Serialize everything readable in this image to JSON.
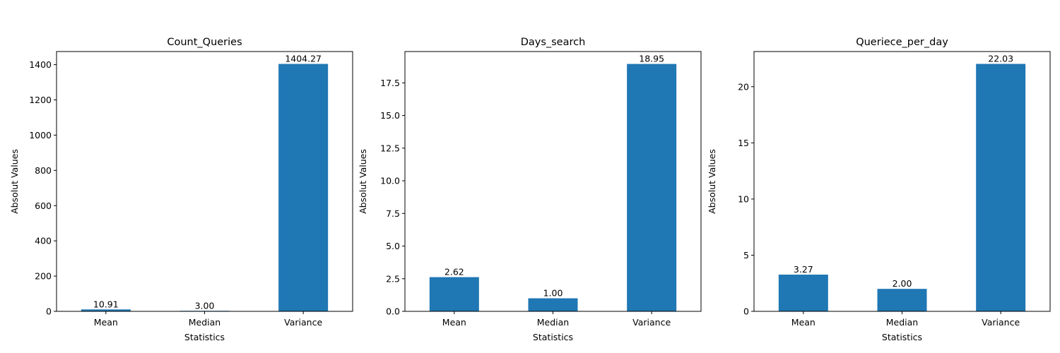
{
  "chart_data": [
    {
      "type": "bar",
      "title": "Count_Queries",
      "xlabel": "Statistics",
      "ylabel": "Absolut Values",
      "categories": [
        "Mean",
        "Median",
        "Variance"
      ],
      "values": [
        10.91,
        3.0,
        1404.27
      ],
      "value_labels": [
        "10.91",
        "3.00",
        "1404.27"
      ],
      "yticks": [
        0,
        200,
        400,
        600,
        800,
        1000,
        1200,
        1400
      ],
      "ytick_labels": [
        "0",
        "200",
        "400",
        "600",
        "800",
        "1000",
        "1200",
        "1400"
      ],
      "ylim": [
        0,
        1474.48
      ],
      "grid": false,
      "bar_color": "#1f77b4"
    },
    {
      "type": "bar",
      "title": "Days_search",
      "xlabel": "Statistics",
      "ylabel": "Absolut Values",
      "categories": [
        "Mean",
        "Median",
        "Variance"
      ],
      "values": [
        2.62,
        1.0,
        18.95
      ],
      "value_labels": [
        "2.62",
        "1.00",
        "18.95"
      ],
      "yticks": [
        0,
        2.5,
        5,
        7.5,
        10,
        12.5,
        15,
        17.5
      ],
      "ytick_labels": [
        "0.0",
        "2.5",
        "5.0",
        "7.5",
        "10.0",
        "12.5",
        "15.0",
        "17.5"
      ],
      "ylim": [
        0,
        19.9
      ],
      "grid": false,
      "bar_color": "#1f77b4"
    },
    {
      "type": "bar",
      "title": "Queriece_per_day",
      "xlabel": "Statistics",
      "ylabel": "Absolut Values",
      "categories": [
        "Mean",
        "Median",
        "Variance"
      ],
      "values": [
        3.27,
        2.0,
        22.03
      ],
      "value_labels": [
        "3.27",
        "2.00",
        "22.03"
      ],
      "yticks": [
        0,
        5,
        10,
        15,
        20
      ],
      "ytick_labels": [
        "0",
        "5",
        "10",
        "15",
        "20"
      ],
      "ylim": [
        0,
        23.13
      ],
      "grid": false,
      "bar_color": "#1f77b4"
    }
  ]
}
